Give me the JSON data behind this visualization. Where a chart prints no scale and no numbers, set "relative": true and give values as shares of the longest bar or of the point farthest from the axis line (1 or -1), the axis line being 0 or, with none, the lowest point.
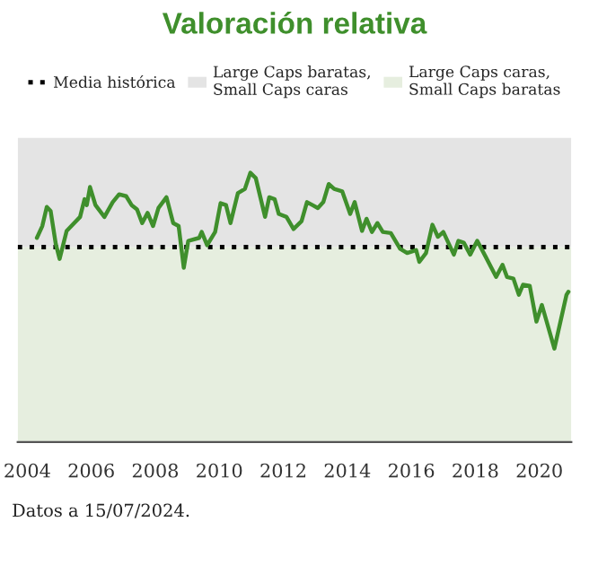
{
  "chart_data": {
    "type": "line",
    "title": "Valoración relativa",
    "relative": true,
    "x": [
      2004.3,
      2004.47,
      2004.61,
      2004.73,
      2004.89,
      2005.01,
      2005.23,
      2005.65,
      2005.79,
      2005.86,
      2005.96,
      2006.13,
      2006.41,
      2006.67,
      2006.87,
      2007.09,
      2007.26,
      2007.43,
      2007.59,
      2007.76,
      2007.93,
      2008.1,
      2008.35,
      2008.56,
      2008.73,
      2008.89,
      2009.03,
      2009.37,
      2009.45,
      2009.62,
      2009.87,
      2010.04,
      2010.21,
      2010.35,
      2010.58,
      2010.8,
      2010.97,
      2011.14,
      2011.43,
      2011.56,
      2011.73,
      2011.86,
      2012.1,
      2012.32,
      2012.57,
      2012.74,
      2012.91,
      2013.08,
      2013.25,
      2013.42,
      2013.59,
      2013.84,
      2014.09,
      2014.23,
      2014.46,
      2014.6,
      2014.77,
      2014.94,
      2015.11,
      2015.36,
      2015.65,
      2015.87,
      2016.15,
      2016.25,
      2016.46,
      2016.66,
      2016.83,
      2017.0,
      2017.33,
      2017.47,
      2017.64,
      2017.84,
      2018.06,
      2018.31,
      2018.65,
      2018.85,
      2018.99,
      2019.19,
      2019.36,
      2019.49,
      2019.7,
      2019.91,
      2020.08,
      2020.47,
      2020.85,
      2020.91
    ],
    "series": [
      {
        "color": "#3f8f2c",
        "values": [
          0.758,
          0.802,
          0.873,
          0.858,
          0.736,
          0.68,
          0.784,
          0.836,
          0.902,
          0.88,
          0.947,
          0.88,
          0.836,
          0.891,
          0.92,
          0.913,
          0.88,
          0.864,
          0.813,
          0.851,
          0.802,
          0.869,
          0.909,
          0.813,
          0.802,
          0.647,
          0.747,
          0.758,
          0.78,
          0.731,
          0.78,
          0.887,
          0.88,
          0.813,
          0.924,
          0.94,
          1.0,
          0.98,
          0.836,
          0.909,
          0.902,
          0.847,
          0.836,
          0.791,
          0.82,
          0.891,
          0.88,
          0.869,
          0.891,
          0.958,
          0.94,
          0.931,
          0.847,
          0.891,
          0.784,
          0.829,
          0.78,
          0.813,
          0.78,
          0.776,
          0.718,
          0.702,
          0.713,
          0.669,
          0.702,
          0.807,
          0.762,
          0.78,
          0.696,
          0.747,
          0.74,
          0.696,
          0.747,
          0.691,
          0.613,
          0.658,
          0.613,
          0.607,
          0.547,
          0.584,
          0.58,
          0.447,
          0.509,
          0.347,
          0.547,
          0.558
        ]
      }
    ],
    "xlim": [
      2003.7,
      2021.0
    ],
    "xticks": [
      2004,
      2006,
      2008,
      2010,
      2012,
      2014,
      2016,
      2018,
      2020
    ],
    "ref_lines": [
      {
        "axis": "y",
        "value": 0.724,
        "label": "Media histórica",
        "color": "#000000",
        "line_style": "dotted"
      }
    ],
    "bands": [
      {
        "axis": "y",
        "from": 0.724,
        "to": 1.13,
        "label": "Large Caps baratas,\nSmall Caps caras",
        "color": "#e4e4e4"
      },
      {
        "axis": "y",
        "from": 0,
        "to": 0.724,
        "label": "Large Caps caras,\nSmall Caps baratas",
        "color": "#e6eedf"
      }
    ],
    "annotations": [
      "Datos a 15/07/2024."
    ],
    "legend": "top",
    "grid": false
  }
}
